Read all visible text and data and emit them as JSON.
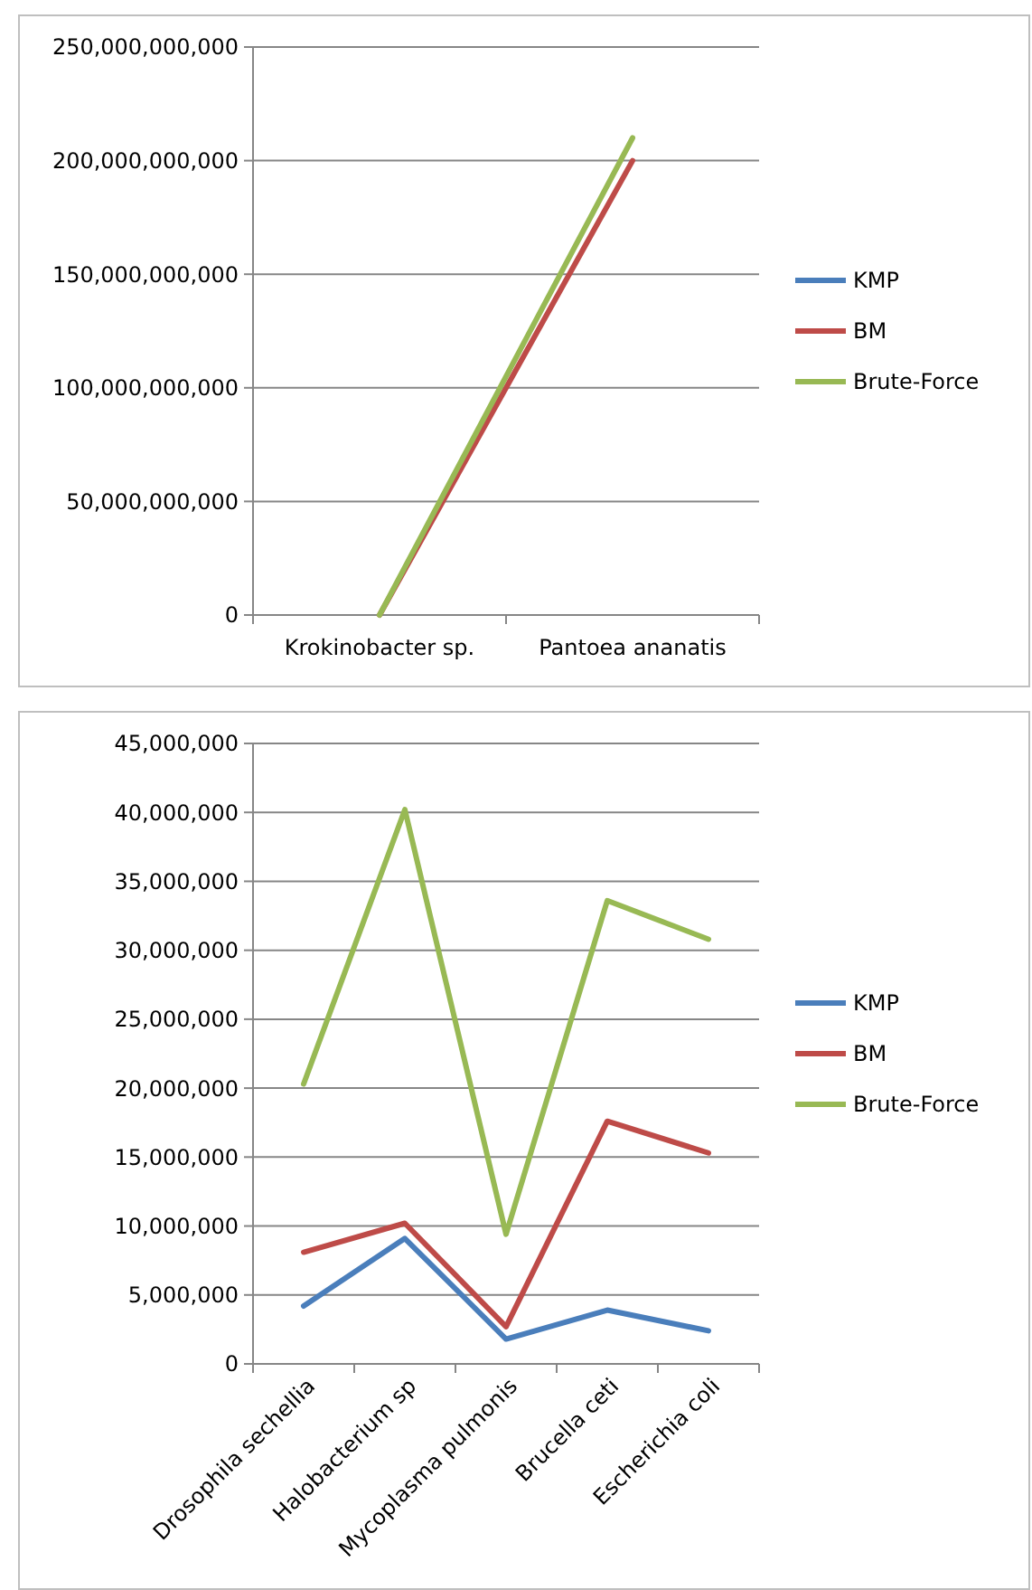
{
  "chart_data": [
    {
      "type": "line",
      "categories": [
        "Krokinobacter sp.",
        "Pantoea ananatis"
      ],
      "series": [
        {
          "name": "KMP",
          "color": "#4a7ebb",
          "values": [
            null,
            null
          ]
        },
        {
          "name": "BM",
          "color": "#be4b48",
          "values": [
            0,
            200000000000
          ]
        },
        {
          "name": "Brute-Force",
          "color": "#98b954",
          "values": [
            0,
            210000000000
          ]
        }
      ],
      "ylim": [
        0,
        250000000000
      ],
      "yticks": [
        {
          "value": 0,
          "label": "0"
        },
        {
          "value": 50000000000,
          "label": "50,000,000,000"
        },
        {
          "value": 100000000000,
          "label": "100,000,000,000"
        },
        {
          "value": 150000000000,
          "label": "150,000,000,000"
        },
        {
          "value": 200000000000,
          "label": "200,000,000,000"
        },
        {
          "value": 250000000000,
          "label": "250,000,000,000"
        }
      ],
      "grid": "y",
      "legend": "right",
      "marker": "none",
      "line_style": "solid"
    },
    {
      "type": "line",
      "categories": [
        "Drosophila sechellia",
        "Halobacterium sp",
        "Mycoplasma pulmonis",
        "Brucella ceti",
        "Escherichia coli"
      ],
      "series": [
        {
          "name": "KMP",
          "color": "#4a7ebb",
          "values": [
            4200000,
            9100000,
            1800000,
            3900000,
            2400000
          ]
        },
        {
          "name": "BM",
          "color": "#be4b48",
          "values": [
            8100000,
            10200000,
            2700000,
            17600000,
            15300000
          ]
        },
        {
          "name": "Brute-Force",
          "color": "#98b954",
          "values": [
            20300000,
            40200000,
            9400000,
            33600000,
            30800000
          ]
        }
      ],
      "ylim": [
        0,
        45000000
      ],
      "yticks": [
        {
          "value": 0,
          "label": "0"
        },
        {
          "value": 5000000,
          "label": "5,000,000"
        },
        {
          "value": 10000000,
          "label": "10,000,000"
        },
        {
          "value": 15000000,
          "label": "15,000,000"
        },
        {
          "value": 20000000,
          "label": "20,000,000"
        },
        {
          "value": 25000000,
          "label": "25,000,000"
        },
        {
          "value": 30000000,
          "label": "30,000,000"
        },
        {
          "value": 35000000,
          "label": "35,000,000"
        },
        {
          "value": 40000000,
          "label": "40,000,000"
        },
        {
          "value": 45000000,
          "label": "45,000,000"
        }
      ],
      "grid": "y",
      "legend": "right",
      "marker": "none",
      "line_style": "solid"
    }
  ]
}
